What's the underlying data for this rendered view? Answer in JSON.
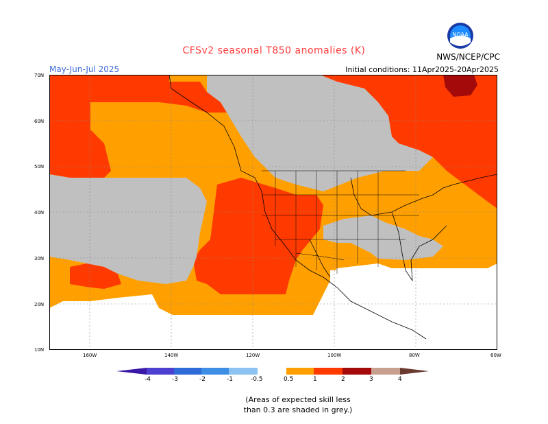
{
  "header": {
    "title": "CFSv2 seasonal T850 anomalies (K)",
    "organization": "NWS/NCEP/CPC",
    "period": "May-Jun-Jul 2025",
    "initial_conditions": "Initial conditions: 11Apr2025-20Apr2025",
    "logo_text": "NOAA"
  },
  "axes": {
    "lat_labels": [
      "70N",
      "60N",
      "50N",
      "40N",
      "30N",
      "20N",
      "10N"
    ],
    "lon_labels": [
      "160W",
      "140W",
      "120W",
      "100W",
      "80W",
      "60W"
    ]
  },
  "legend": {
    "tick_labels": [
      "-4",
      "-3",
      "-2",
      "-1",
      "-0.5",
      "0.5",
      "1",
      "2",
      "3",
      "4"
    ],
    "colors": {
      "lt_minus4": "#3a19a8",
      "minus4_3": "#4d3fd0",
      "minus3_2": "#2e6ad8",
      "minus2_1": "#3d8fe6",
      "minus1_05": "#8cc3f3",
      "neutral": "#ffffff",
      "p05_1": "#ffa000",
      "p1_2": "#ff3a00",
      "p2_3": "#a50a0a",
      "p3_4": "#c8a090",
      "gt4": "#6b3a2e"
    }
  },
  "map_colors": {
    "grey_low_skill": "#c0c0c0",
    "anomaly_05_1": "#ffa000",
    "anomaly_1_2": "#ff3a00",
    "anomaly_2_3": "#a50a0a",
    "no_data": "#ffffff"
  },
  "footnote": {
    "line1": "(Areas of expected skill less",
    "line2": "than 0.3 are shaded in grey.)"
  }
}
